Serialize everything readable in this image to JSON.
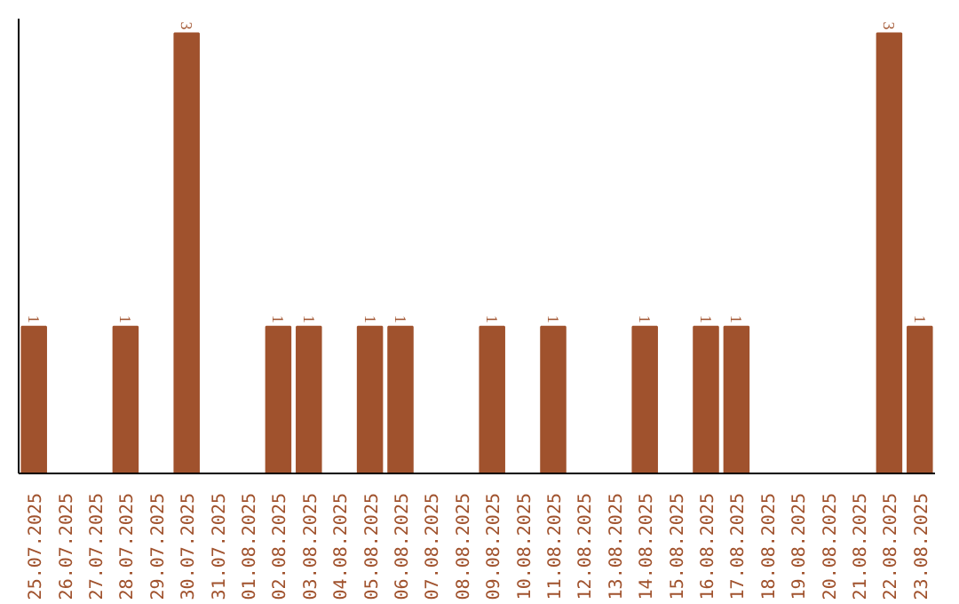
{
  "chart_data": {
    "type": "bar",
    "categories": [
      "25.07.2025",
      "26.07.2025",
      "27.07.2025",
      "28.07.2025",
      "29.07.2025",
      "30.07.2025",
      "31.07.2025",
      "01.08.2025",
      "02.08.2025",
      "03.08.2025",
      "04.08.2025",
      "05.08.2025",
      "06.08.2025",
      "07.08.2025",
      "08.08.2025",
      "09.08.2025",
      "10.08.2025",
      "11.08.2025",
      "12.08.2025",
      "13.08.2025",
      "14.08.2025",
      "15.08.2025",
      "16.08.2025",
      "17.08.2025",
      "18.08.2025",
      "19.08.2025",
      "20.08.2025",
      "21.08.2025",
      "22.08.2025",
      "23.08.2025"
    ],
    "values": [
      1,
      0,
      0,
      1,
      0,
      3,
      0,
      0,
      1,
      1,
      0,
      1,
      1,
      0,
      0,
      1,
      0,
      1,
      0,
      0,
      1,
      0,
      1,
      1,
      0,
      0,
      0,
      0,
      3,
      1
    ],
    "value_labels": [
      "1",
      null,
      null,
      "1",
      null,
      "3",
      null,
      null,
      "1",
      "1",
      null,
      "1",
      "1",
      null,
      null,
      "1",
      null,
      "1",
      null,
      null,
      "1",
      null,
      "1",
      "1",
      null,
      null,
      null,
      null,
      "3",
      "1"
    ],
    "color": "#a0522d",
    "ylim": [
      0,
      3.1
    ],
    "tick_labels": "x",
    "grid": false
  }
}
